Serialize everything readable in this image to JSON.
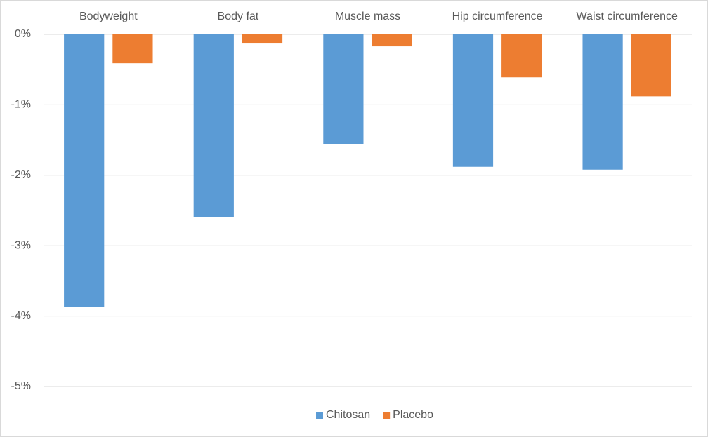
{
  "chart_data": {
    "type": "bar",
    "categories": [
      "Bodyweight",
      "Body fat",
      "Muscle mass",
      "Hip circumference",
      "Waist circumference"
    ],
    "series": [
      {
        "name": "Chitosan",
        "color": "#5b9bd5",
        "values": [
          -3.87,
          -2.59,
          -1.56,
          -1.88,
          -1.92
        ]
      },
      {
        "name": "Placebo",
        "color": "#ed7d31",
        "values": [
          -0.41,
          -0.13,
          -0.17,
          -0.61,
          -0.88
        ]
      }
    ],
    "ylim": [
      -5,
      0
    ],
    "yticks": [
      {
        "value": 0,
        "label": "0%"
      },
      {
        "value": -1,
        "label": "-1%"
      },
      {
        "value": -2,
        "label": "-2%"
      },
      {
        "value": -3,
        "label": "-3%"
      },
      {
        "value": -4,
        "label": "-4%"
      },
      {
        "value": -5,
        "label": "-5%"
      }
    ],
    "grid": true,
    "legend": "bottom"
  }
}
